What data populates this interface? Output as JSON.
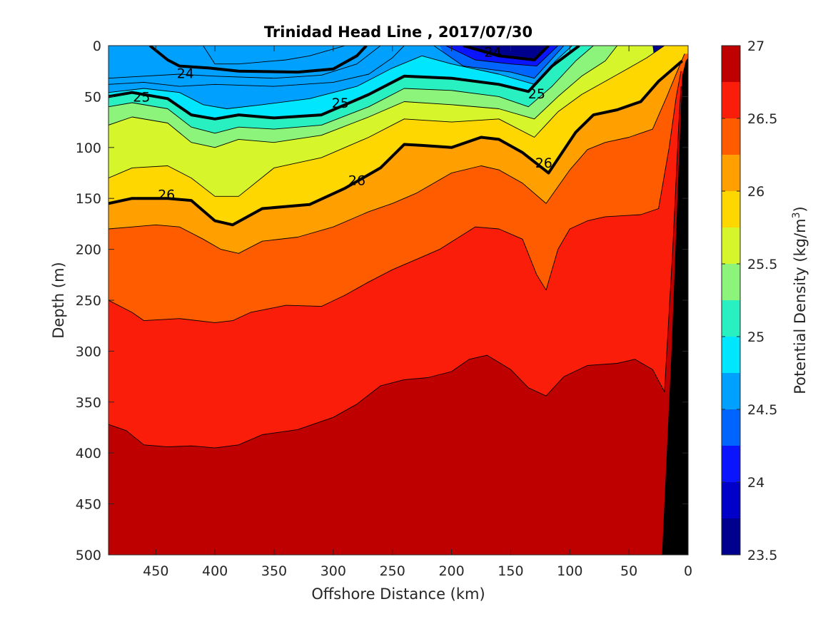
{
  "chart_data": {
    "type": "contour",
    "title": "Trinidad Head Line , 2017/07/30",
    "xlabel": "Offshore Distance (km)",
    "ylabel": "Depth (m)",
    "xlim": [
      490,
      0
    ],
    "ylim": [
      0,
      500
    ],
    "x_reversed": true,
    "y_reversed": true,
    "x_ticks": [
      "450",
      "400",
      "350",
      "300",
      "250",
      "200",
      "150",
      "100",
      "50",
      "0"
    ],
    "y_ticks": [
      "0",
      "50",
      "100",
      "150",
      "200",
      "250",
      "300",
      "350",
      "400",
      "450",
      "500"
    ],
    "colorbar": {
      "label_prefix": "Potential Density (kg/m",
      "label_sup": "3",
      "label_suffix": ")",
      "ticks": [
        "27",
        "26.5",
        "26",
        "25.5",
        "25",
        "24.5",
        "24",
        "23.5"
      ],
      "range": [
        23.5,
        27
      ],
      "levels": [
        23.5,
        23.75,
        24,
        24.25,
        24.5,
        24.75,
        25,
        25.25,
        25.5,
        25.75,
        26,
        26.25,
        26.5,
        26.75,
        27
      ],
      "colors": [
        "#00008f",
        "#0000c9",
        "#0a14ff",
        "#0064ff",
        "#00a0ff",
        "#00e6ff",
        "#28f0c0",
        "#8cf47a",
        "#d6f52a",
        "#ffd700",
        "#ffa000",
        "#ff5c00",
        "#fa1e0a",
        "#bf0000"
      ]
    },
    "grid": false,
    "contour_labels": [
      {
        "text": "24",
        "x": 425,
        "y": 27
      },
      {
        "text": "24",
        "x": 165,
        "y": 6
      },
      {
        "text": "25",
        "x": 462,
        "y": 50
      },
      {
        "text": "25",
        "x": 294,
        "y": 56
      },
      {
        "text": "25",
        "x": 128,
        "y": 47
      },
      {
        "text": "26",
        "x": 441,
        "y": 146
      },
      {
        "text": "26",
        "x": 280,
        "y": 132
      },
      {
        "text": "26",
        "x": 122,
        "y": 115
      }
    ],
    "isopycnals": [
      {
        "level": 24,
        "bold": true,
        "points": [
          [
            455,
            0
          ],
          [
            440,
            14
          ],
          [
            430,
            20
          ],
          [
            405,
            22
          ],
          [
            380,
            25
          ],
          [
            330,
            26
          ],
          [
            300,
            23
          ],
          [
            280,
            10
          ],
          [
            272,
            0
          ]
        ]
      },
      {
        "level": 24,
        "bold": true,
        "points": [
          [
            190,
            0
          ],
          [
            160,
            10
          ],
          [
            130,
            14
          ],
          [
            118,
            0
          ]
        ]
      },
      {
        "level": 25,
        "bold": true,
        "points": [
          [
            490,
            50
          ],
          [
            470,
            46
          ],
          [
            440,
            52
          ],
          [
            420,
            68
          ],
          [
            400,
            72
          ],
          [
            380,
            68
          ],
          [
            350,
            71
          ],
          [
            310,
            68
          ],
          [
            270,
            48
          ],
          [
            240,
            30
          ],
          [
            200,
            32
          ],
          [
            160,
            38
          ],
          [
            135,
            45
          ],
          [
            115,
            20
          ],
          [
            92,
            0
          ]
        ]
      },
      {
        "level": 26,
        "bold": true,
        "points": [
          [
            490,
            155
          ],
          [
            470,
            150
          ],
          [
            440,
            150
          ],
          [
            420,
            152
          ],
          [
            400,
            172
          ],
          [
            385,
            176
          ],
          [
            360,
            160
          ],
          [
            340,
            158
          ],
          [
            320,
            156
          ],
          [
            290,
            140
          ],
          [
            260,
            120
          ],
          [
            240,
            97
          ],
          [
            225,
            98
          ],
          [
            200,
            100
          ],
          [
            175,
            90
          ],
          [
            160,
            92
          ],
          [
            140,
            105
          ],
          [
            118,
            125
          ],
          [
            95,
            85
          ],
          [
            80,
            68
          ],
          [
            60,
            63
          ],
          [
            40,
            55
          ],
          [
            25,
            35
          ],
          [
            5,
            15
          ]
        ]
      }
    ],
    "layer_boundaries": [
      {
        "level": 23.75,
        "points": [
          [
            410,
            0
          ],
          [
            400,
            18
          ],
          [
            380,
            18
          ],
          [
            340,
            14
          ],
          [
            320,
            10
          ],
          [
            290,
            0
          ]
        ]
      },
      {
        "level": 24.25,
        "points": [
          [
            490,
            32
          ],
          [
            460,
            30
          ],
          [
            430,
            28
          ],
          [
            400,
            30
          ],
          [
            350,
            32
          ],
          [
            310,
            29
          ],
          [
            280,
            18
          ],
          [
            260,
            0
          ]
        ]
      },
      {
        "level": 24.25,
        "points": [
          [
            205,
            0
          ],
          [
            180,
            14
          ],
          [
            150,
            18
          ],
          [
            128,
            20
          ],
          [
            110,
            0
          ]
        ]
      },
      {
        "level": 24.5,
        "points": [
          [
            490,
            38
          ],
          [
            460,
            36
          ],
          [
            430,
            40
          ],
          [
            400,
            38
          ],
          [
            350,
            40
          ],
          [
            300,
            36
          ],
          [
            270,
            28
          ],
          [
            250,
            12
          ],
          [
            240,
            0
          ]
        ]
      },
      {
        "level": 24.5,
        "points": [
          [
            215,
            0
          ],
          [
            190,
            20
          ],
          [
            150,
            26
          ],
          [
            130,
            32
          ],
          [
            105,
            0
          ]
        ]
      },
      {
        "level": 24.75,
        "points": [
          [
            490,
            46
          ],
          [
            460,
            42
          ],
          [
            430,
            46
          ],
          [
            410,
            58
          ],
          [
            390,
            62
          ],
          [
            360,
            58
          ],
          [
            320,
            52
          ],
          [
            280,
            40
          ],
          [
            250,
            22
          ],
          [
            225,
            10
          ],
          [
            200,
            18
          ],
          [
            160,
            28
          ],
          [
            130,
            38
          ],
          [
            112,
            15
          ],
          [
            98,
            0
          ]
        ]
      },
      {
        "level": 25.25,
        "points": [
          [
            490,
            60
          ],
          [
            470,
            56
          ],
          [
            440,
            62
          ],
          [
            420,
            80
          ],
          [
            400,
            86
          ],
          [
            380,
            80
          ],
          [
            350,
            82
          ],
          [
            310,
            78
          ],
          [
            270,
            60
          ],
          [
            240,
            42
          ],
          [
            200,
            44
          ],
          [
            160,
            50
          ],
          [
            135,
            60
          ],
          [
            115,
            40
          ],
          [
            95,
            15
          ],
          [
            80,
            0
          ]
        ]
      },
      {
        "level": 25.5,
        "points": [
          [
            490,
            78
          ],
          [
            470,
            70
          ],
          [
            440,
            76
          ],
          [
            420,
            95
          ],
          [
            400,
            100
          ],
          [
            380,
            92
          ],
          [
            350,
            95
          ],
          [
            310,
            88
          ],
          [
            270,
            70
          ],
          [
            240,
            55
          ],
          [
            200,
            58
          ],
          [
            160,
            62
          ],
          [
            130,
            72
          ],
          [
            110,
            50
          ],
          [
            90,
            30
          ],
          [
            70,
            15
          ],
          [
            60,
            0
          ]
        ]
      },
      {
        "level": 25.75,
        "points": [
          [
            490,
            130
          ],
          [
            470,
            120
          ],
          [
            440,
            118
          ],
          [
            420,
            130
          ],
          [
            400,
            148
          ],
          [
            380,
            148
          ],
          [
            350,
            120
          ],
          [
            310,
            110
          ],
          [
            270,
            90
          ],
          [
            240,
            72
          ],
          [
            200,
            75
          ],
          [
            160,
            72
          ],
          [
            130,
            90
          ],
          [
            110,
            65
          ],
          [
            90,
            48
          ],
          [
            70,
            35
          ],
          [
            50,
            22
          ],
          [
            35,
            12
          ],
          [
            20,
            0
          ]
        ]
      },
      {
        "level": 26.25,
        "points": [
          [
            490,
            180
          ],
          [
            470,
            178
          ],
          [
            450,
            176
          ],
          [
            430,
            178
          ],
          [
            410,
            190
          ],
          [
            395,
            200
          ],
          [
            380,
            204
          ],
          [
            360,
            192
          ],
          [
            330,
            188
          ],
          [
            300,
            178
          ],
          [
            270,
            163
          ],
          [
            250,
            155
          ],
          [
            230,
            145
          ],
          [
            200,
            125
          ],
          [
            175,
            118
          ],
          [
            160,
            122
          ],
          [
            140,
            135
          ],
          [
            120,
            155
          ],
          [
            100,
            122
          ],
          [
            85,
            102
          ],
          [
            70,
            95
          ],
          [
            50,
            90
          ],
          [
            30,
            82
          ],
          [
            18,
            50
          ],
          [
            8,
            22
          ],
          [
            3,
            8
          ]
        ]
      },
      {
        "level": 26.5,
        "points": [
          [
            490,
            250
          ],
          [
            470,
            262
          ],
          [
            460,
            270
          ],
          [
            430,
            268
          ],
          [
            400,
            272
          ],
          [
            385,
            270
          ],
          [
            370,
            262
          ],
          [
            340,
            255
          ],
          [
            310,
            256
          ],
          [
            290,
            245
          ],
          [
            270,
            232
          ],
          [
            250,
            220
          ],
          [
            230,
            210
          ],
          [
            210,
            200
          ],
          [
            180,
            178
          ],
          [
            160,
            180
          ],
          [
            140,
            190
          ],
          [
            128,
            225
          ],
          [
            120,
            240
          ],
          [
            110,
            200
          ],
          [
            100,
            180
          ],
          [
            85,
            172
          ],
          [
            70,
            168
          ],
          [
            40,
            166
          ],
          [
            25,
            160
          ],
          [
            16,
            100
          ],
          [
            10,
            50
          ],
          [
            6,
            25
          ]
        ]
      },
      {
        "level": 26.75,
        "points": [
          [
            490,
            372
          ],
          [
            475,
            378
          ],
          [
            460,
            392
          ],
          [
            440,
            394
          ],
          [
            420,
            393
          ],
          [
            400,
            395
          ],
          [
            380,
            392
          ],
          [
            360,
            382
          ],
          [
            330,
            377
          ],
          [
            300,
            365
          ],
          [
            280,
            352
          ],
          [
            260,
            334
          ],
          [
            240,
            328
          ],
          [
            220,
            326
          ],
          [
            200,
            320
          ],
          [
            185,
            308
          ],
          [
            170,
            304
          ],
          [
            150,
            318
          ],
          [
            135,
            336
          ],
          [
            120,
            344
          ],
          [
            105,
            325
          ],
          [
            85,
            314
          ],
          [
            60,
            312
          ],
          [
            45,
            308
          ],
          [
            30,
            318
          ],
          [
            20,
            340
          ],
          [
            13,
            200
          ],
          [
            8,
            80
          ],
          [
            6,
            40
          ]
        ]
      }
    ],
    "bathymetry": {
      "points": [
        [
          22,
          500
        ],
        [
          14,
          300
        ],
        [
          10,
          180
        ],
        [
          7,
          90
        ],
        [
          5,
          30
        ],
        [
          2,
          15
        ],
        [
          0,
          12
        ],
        [
          0,
          500
        ]
      ],
      "color": "#000000"
    }
  }
}
